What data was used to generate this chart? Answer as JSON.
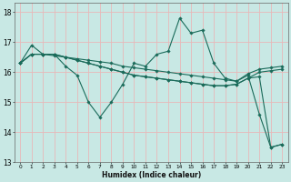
{
  "xlabel": "Humidex (Indice chaleur)",
  "ylabel": "",
  "background_color": "#c8e8e4",
  "grid_color": "#e8b8b8",
  "line_color": "#1a6b5a",
  "xlim": [
    -0.5,
    23.5
  ],
  "ylim": [
    13,
    18.3
  ],
  "yticks": [
    13,
    14,
    15,
    16,
    17,
    18
  ],
  "xticks": [
    0,
    1,
    2,
    3,
    4,
    5,
    6,
    7,
    8,
    9,
    10,
    11,
    12,
    13,
    14,
    15,
    16,
    17,
    18,
    19,
    20,
    21,
    22,
    23
  ],
  "series": [
    [
      16.3,
      16.9,
      16.6,
      16.6,
      16.2,
      15.9,
      15.0,
      14.5,
      15.0,
      15.6,
      16.3,
      16.2,
      16.6,
      16.7,
      17.8,
      17.3,
      17.4,
      16.3,
      15.8,
      15.7,
      15.9,
      14.6,
      13.5,
      13.6
    ],
    [
      16.3,
      16.6,
      16.6,
      16.6,
      16.5,
      16.4,
      16.3,
      16.2,
      16.1,
      16.0,
      15.9,
      15.85,
      15.8,
      15.75,
      15.7,
      15.65,
      15.6,
      15.55,
      15.55,
      15.6,
      15.8,
      15.85,
      13.5,
      13.6
    ],
    [
      16.3,
      16.6,
      16.6,
      16.6,
      16.5,
      16.4,
      16.3,
      16.2,
      16.1,
      16.0,
      15.9,
      15.85,
      15.8,
      15.75,
      15.7,
      15.65,
      15.6,
      15.55,
      15.55,
      15.6,
      15.8,
      16.0,
      16.05,
      16.1
    ],
    [
      16.3,
      16.6,
      16.6,
      16.55,
      16.5,
      16.45,
      16.4,
      16.35,
      16.3,
      16.2,
      16.15,
      16.1,
      16.05,
      16.0,
      15.95,
      15.9,
      15.85,
      15.8,
      15.75,
      15.7,
      15.95,
      16.1,
      16.15,
      16.2
    ]
  ]
}
